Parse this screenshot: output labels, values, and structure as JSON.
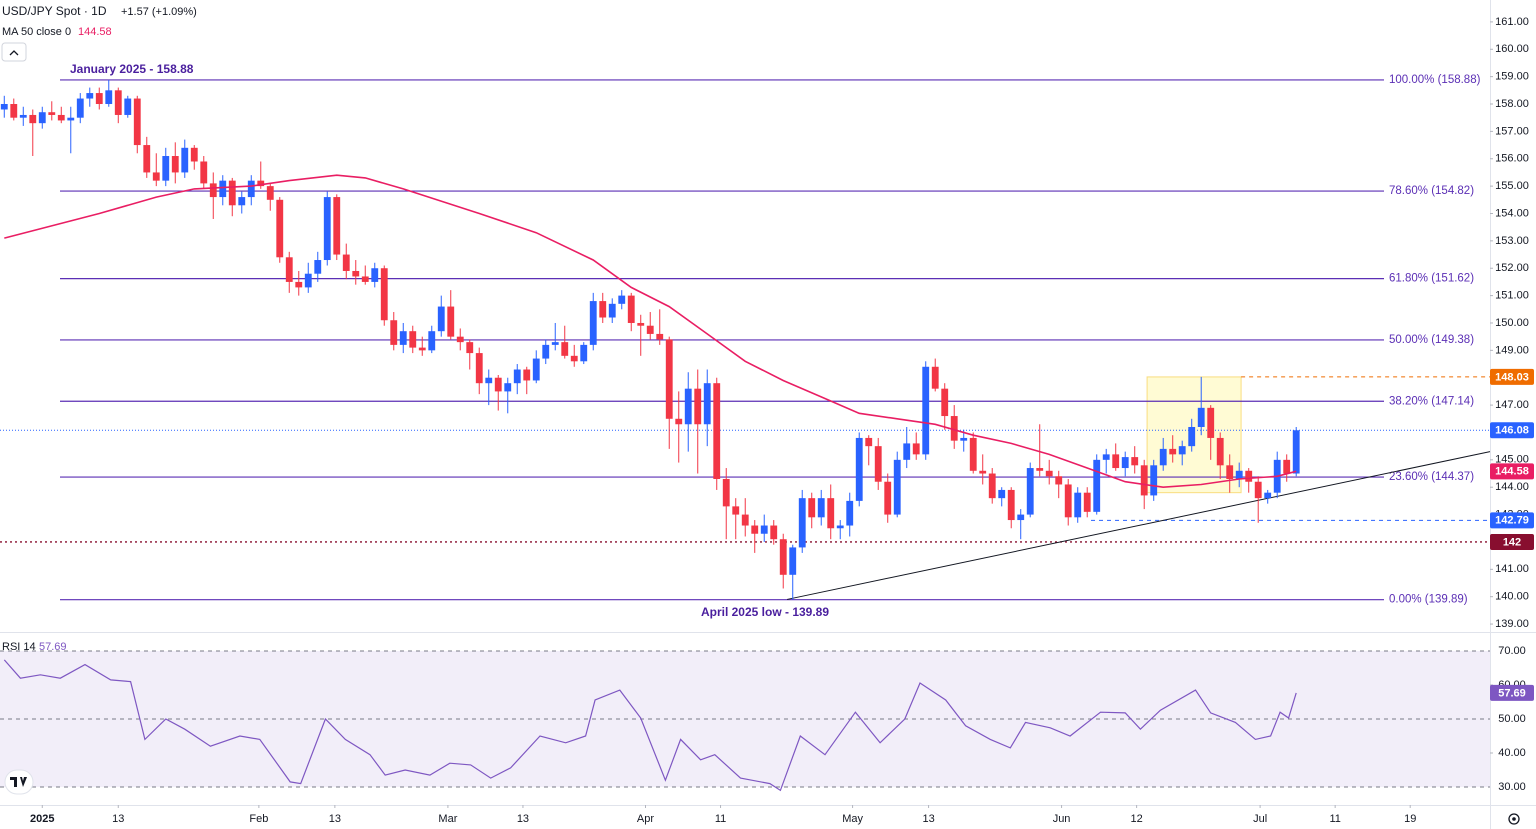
{
  "chart_data": {
    "type": "candlestick",
    "title": "USD/JPY Spot · 1D",
    "change": "+1.57 (+1.09%)",
    "ma_label": "MA 50 close 0",
    "rsi_label": "RSI 14",
    "up_color": "#2962ff",
    "down_color": "#f23645",
    "ma_color": "#e91e63",
    "rsi_color": "#7e57c2",
    "fib_color": "#5b2fb5",
    "xlim": [
      -0.45,
      156.4
    ],
    "ylim": [
      138.71,
      161.8
    ],
    "yticks": [
      {
        "value": 139,
        "label": "139.00"
      },
      {
        "value": 140,
        "label": "140.00"
      },
      {
        "value": 141,
        "label": "141.00"
      },
      {
        "value": 142,
        "label": "142.00"
      },
      {
        "value": 143,
        "label": "143.00"
      },
      {
        "value": 144,
        "label": "144.00"
      },
      {
        "value": 145,
        "label": "145.00"
      },
      {
        "value": 146,
        "label": "146.00"
      },
      {
        "value": 147,
        "label": "147.00"
      },
      {
        "value": 148,
        "label": "148.00"
      },
      {
        "value": 149,
        "label": "149.00"
      },
      {
        "value": 150,
        "label": "150.00"
      },
      {
        "value": 151,
        "label": "151.00"
      },
      {
        "value": 152,
        "label": "152.00"
      },
      {
        "value": 153,
        "label": "153.00"
      },
      {
        "value": 154,
        "label": "154.00"
      },
      {
        "value": 155,
        "label": "155.00"
      },
      {
        "value": 156,
        "label": "156.00"
      },
      {
        "value": 157,
        "label": "157.00"
      },
      {
        "value": 158,
        "label": "158.00"
      },
      {
        "value": 159,
        "label": "159.00"
      },
      {
        "value": 160,
        "label": "160.00"
      },
      {
        "value": 161,
        "label": "161.00"
      }
    ],
    "xticks": [
      {
        "value": 4,
        "label": "2025"
      },
      {
        "value": 12,
        "label": "13"
      },
      {
        "value": 26.8,
        "label": "Feb"
      },
      {
        "value": 34.8,
        "label": "13"
      },
      {
        "value": 46.7,
        "label": "Mar"
      },
      {
        "value": 54.6,
        "label": "13"
      },
      {
        "value": 67.5,
        "label": "Apr"
      },
      {
        "value": 75.4,
        "label": "11"
      },
      {
        "value": 89.3,
        "label": "May"
      },
      {
        "value": 97.3,
        "label": "13"
      },
      {
        "value": 111.3,
        "label": "Jun"
      },
      {
        "value": 119.2,
        "label": "12"
      },
      {
        "value": 132.2,
        "label": "Jul"
      },
      {
        "value": 140.1,
        "label": "11"
      },
      {
        "value": 148,
        "label": "19"
      }
    ],
    "candles": [
      [
        157.8,
        158.3,
        157.5,
        158.0
      ],
      [
        158.0,
        158.2,
        157.4,
        157.5
      ],
      [
        157.5,
        157.9,
        157.2,
        157.6
      ],
      [
        157.6,
        157.8,
        156.1,
        157.3
      ],
      [
        157.3,
        157.9,
        157.1,
        157.7
      ],
      [
        157.7,
        158.1,
        157.4,
        157.6
      ],
      [
        157.6,
        157.9,
        157.3,
        157.4
      ],
      [
        157.4,
        157.9,
        156.2,
        157.5
      ],
      [
        157.5,
        158.4,
        157.3,
        158.2
      ],
      [
        158.2,
        158.6,
        157.9,
        158.4
      ],
      [
        158.4,
        158.6,
        157.8,
        158.0
      ],
      [
        158.0,
        158.88,
        157.9,
        158.5
      ],
      [
        158.5,
        158.6,
        157.3,
        157.6
      ],
      [
        157.6,
        158.3,
        157.5,
        158.2
      ],
      [
        158.2,
        158.3,
        156.2,
        156.5
      ],
      [
        156.5,
        156.8,
        155.3,
        155.5
      ],
      [
        155.5,
        156.2,
        155.0,
        155.2
      ],
      [
        155.2,
        156.4,
        155.0,
        156.1
      ],
      [
        156.1,
        156.6,
        155.1,
        155.5
      ],
      [
        155.5,
        156.7,
        155.3,
        156.4
      ],
      [
        156.4,
        156.5,
        155.6,
        155.9
      ],
      [
        155.9,
        156.1,
        154.9,
        155.1
      ],
      [
        155.1,
        155.5,
        153.8,
        154.6
      ],
      [
        154.6,
        155.4,
        154.3,
        155.2
      ],
      [
        155.2,
        155.3,
        153.9,
        154.3
      ],
      [
        154.3,
        154.8,
        154.0,
        154.6
      ],
      [
        154.6,
        155.4,
        154.3,
        155.2
      ],
      [
        155.2,
        155.9,
        154.9,
        155.0
      ],
      [
        155.0,
        155.1,
        154.1,
        154.5
      ],
      [
        154.5,
        154.6,
        152.2,
        152.4
      ],
      [
        152.4,
        152.6,
        151.1,
        151.5
      ],
      [
        151.5,
        151.9,
        151.0,
        151.3
      ],
      [
        151.3,
        152.2,
        151.1,
        151.8
      ],
      [
        151.8,
        152.6,
        151.5,
        152.3
      ],
      [
        152.3,
        154.8,
        152.1,
        154.6
      ],
      [
        154.6,
        154.7,
        152.3,
        152.5
      ],
      [
        152.5,
        152.9,
        151.6,
        151.9
      ],
      [
        151.9,
        152.3,
        151.4,
        151.7
      ],
      [
        151.7,
        152.1,
        151.4,
        151.5
      ],
      [
        151.5,
        152.2,
        151.3,
        152.0
      ],
      [
        152.0,
        152.1,
        149.9,
        150.1
      ],
      [
        150.1,
        150.4,
        149.0,
        149.2
      ],
      [
        149.2,
        150.0,
        148.9,
        149.7
      ],
      [
        149.7,
        149.9,
        148.9,
        149.1
      ],
      [
        149.1,
        149.5,
        148.8,
        149.0
      ],
      [
        149.0,
        149.9,
        148.9,
        149.7
      ],
      [
        149.7,
        151.0,
        149.5,
        150.6
      ],
      [
        150.6,
        151.2,
        149.4,
        149.5
      ],
      [
        149.5,
        149.8,
        149.0,
        149.3
      ],
      [
        149.3,
        149.4,
        148.3,
        148.9
      ],
      [
        148.9,
        149.1,
        147.4,
        147.8
      ],
      [
        147.8,
        148.3,
        147.0,
        148.0
      ],
      [
        148.0,
        148.1,
        146.8,
        147.5
      ],
      [
        147.5,
        148.0,
        146.7,
        147.8
      ],
      [
        147.8,
        148.5,
        147.4,
        148.3
      ],
      [
        148.3,
        148.4,
        147.4,
        147.9
      ],
      [
        147.9,
        149.0,
        147.8,
        148.7
      ],
      [
        148.7,
        149.4,
        148.5,
        149.2
      ],
      [
        149.2,
        150.0,
        149.0,
        149.3
      ],
      [
        149.3,
        149.9,
        148.7,
        148.8
      ],
      [
        148.8,
        149.2,
        148.4,
        148.6
      ],
      [
        148.6,
        149.3,
        148.5,
        149.2
      ],
      [
        149.2,
        151.1,
        149.0,
        150.8
      ],
      [
        150.8,
        151.1,
        150.0,
        150.2
      ],
      [
        150.2,
        150.9,
        150.0,
        150.7
      ],
      [
        150.7,
        151.2,
        150.5,
        151.0
      ],
      [
        151.0,
        151.1,
        149.7,
        150.0
      ],
      [
        150.0,
        150.3,
        148.8,
        149.9
      ],
      [
        149.9,
        150.4,
        149.4,
        149.6
      ],
      [
        149.6,
        150.5,
        149.2,
        149.4
      ],
      [
        149.4,
        149.5,
        145.4,
        146.5
      ],
      [
        146.5,
        147.5,
        144.9,
        146.3
      ],
      [
        146.3,
        148.2,
        145.3,
        147.6
      ],
      [
        147.6,
        148.3,
        144.5,
        146.3
      ],
      [
        146.3,
        148.3,
        145.5,
        147.8
      ],
      [
        147.8,
        148.0,
        143.9,
        144.3
      ],
      [
        144.3,
        144.7,
        142.1,
        143.3
      ],
      [
        143.3,
        143.6,
        142.1,
        143.0
      ],
      [
        143.0,
        143.6,
        142.2,
        142.6
      ],
      [
        142.6,
        142.8,
        141.6,
        142.3
      ],
      [
        142.3,
        143.0,
        142.0,
        142.6
      ],
      [
        142.6,
        142.8,
        141.9,
        142.1
      ],
      [
        142.1,
        142.3,
        140.3,
        140.8
      ],
      [
        140.8,
        141.9,
        139.89,
        141.8
      ],
      [
        141.8,
        143.9,
        141.6,
        143.6
      ],
      [
        143.6,
        143.8,
        142.5,
        142.9
      ],
      [
        142.9,
        143.9,
        142.6,
        143.6
      ],
      [
        143.6,
        144.1,
        142.1,
        142.5
      ],
      [
        142.5,
        142.8,
        142.1,
        142.6
      ],
      [
        142.6,
        143.8,
        142.2,
        143.5
      ],
      [
        143.5,
        146.0,
        143.3,
        145.8
      ],
      [
        145.8,
        145.9,
        144.8,
        145.5
      ],
      [
        145.5,
        145.8,
        143.9,
        144.2
      ],
      [
        144.2,
        144.5,
        142.7,
        143.0
      ],
      [
        143.0,
        145.3,
        142.9,
        145.0
      ],
      [
        145.0,
        146.2,
        144.7,
        145.6
      ],
      [
        145.6,
        146.0,
        145.0,
        145.2
      ],
      [
        145.2,
        148.6,
        145.0,
        148.4
      ],
      [
        148.4,
        148.7,
        147.5,
        147.6
      ],
      [
        147.6,
        147.8,
        146.1,
        146.6
      ],
      [
        146.6,
        147.0,
        145.4,
        145.7
      ],
      [
        145.7,
        146.1,
        145.3,
        145.8
      ],
      [
        145.8,
        146.0,
        144.5,
        144.6
      ],
      [
        144.6,
        145.2,
        144.1,
        144.5
      ],
      [
        144.5,
        144.7,
        143.4,
        143.6
      ],
      [
        143.6,
        144.0,
        143.3,
        143.9
      ],
      [
        143.9,
        144.0,
        142.5,
        142.8
      ],
      [
        142.8,
        143.2,
        142.1,
        143.0
      ],
      [
        143.0,
        144.9,
        142.9,
        144.7
      ],
      [
        144.7,
        146.3,
        144.4,
        144.6
      ],
      [
        144.6,
        145.0,
        144.1,
        144.4
      ],
      [
        144.4,
        144.6,
        143.6,
        144.1
      ],
      [
        144.1,
        144.3,
        142.6,
        142.9
      ],
      [
        142.9,
        144.0,
        142.7,
        143.8
      ],
      [
        143.8,
        144.0,
        142.9,
        143.1
      ],
      [
        143.1,
        145.2,
        143.0,
        145.0
      ],
      [
        145.0,
        145.4,
        144.5,
        145.2
      ],
      [
        145.2,
        145.6,
        144.6,
        144.7
      ],
      [
        144.7,
        145.3,
        144.4,
        145.1
      ],
      [
        145.1,
        145.5,
        144.5,
        144.8
      ],
      [
        144.8,
        145.0,
        143.2,
        143.7
      ],
      [
        143.7,
        145.0,
        143.5,
        144.8
      ],
      [
        144.8,
        145.8,
        144.6,
        145.4
      ],
      [
        145.4,
        145.9,
        144.9,
        145.2
      ],
      [
        145.2,
        145.7,
        144.8,
        145.5
      ],
      [
        145.5,
        146.5,
        145.3,
        146.2
      ],
      [
        146.2,
        148.03,
        145.9,
        146.9
      ],
      [
        146.9,
        147.0,
        145.0,
        145.8
      ],
      [
        145.8,
        146.0,
        144.3,
        144.8
      ],
      [
        144.8,
        145.2,
        143.8,
        144.3
      ],
      [
        144.3,
        144.9,
        144.0,
        144.6
      ],
      [
        144.6,
        144.7,
        143.8,
        144.2
      ],
      [
        144.2,
        144.4,
        142.7,
        143.6
      ],
      [
        143.6,
        143.9,
        143.4,
        143.8
      ],
      [
        143.8,
        145.3,
        143.6,
        145.0
      ],
      [
        145.0,
        145.2,
        144.2,
        144.5
      ],
      [
        144.5,
        146.2,
        144.4,
        146.08
      ]
    ],
    "ma": {
      "x": [
        0,
        10,
        16,
        20,
        26,
        30,
        35,
        38,
        42,
        50,
        56,
        62,
        66,
        70,
        74,
        78,
        82,
        86,
        90,
        94,
        98,
        102,
        106,
        110,
        114,
        118,
        122,
        126,
        130,
        134,
        136
      ],
      "values": [
        153.1,
        154.0,
        154.6,
        154.9,
        155.0,
        155.2,
        155.4,
        155.3,
        154.9,
        154.0,
        153.3,
        152.3,
        151.3,
        150.6,
        149.6,
        148.6,
        147.9,
        147.3,
        146.7,
        146.5,
        146.3,
        145.9,
        145.6,
        145.2,
        144.7,
        144.2,
        144.0,
        144.1,
        144.3,
        144.4,
        144.58
      ]
    },
    "fib_levels": [
      {
        "value": 158.88,
        "label": "100.00% (158.88)"
      },
      {
        "value": 154.82,
        "label": "78.60% (154.82)"
      },
      {
        "value": 151.62,
        "label": "61.80% (151.62)"
      },
      {
        "value": 149.38,
        "label": "50.00% (149.38)"
      },
      {
        "value": 147.14,
        "label": "38.20% (147.14)"
      },
      {
        "value": 144.37,
        "label": "23.60% (144.37)"
      },
      {
        "value": 139.89,
        "label": "0.00% (139.89)"
      }
    ],
    "levels": [
      {
        "value": 148.03,
        "color": "#ef6c00",
        "from": 130.2
      },
      {
        "value": 142.79,
        "color": "#2962ff",
        "from": 114.4
      },
      {
        "value": 142.0,
        "color": "#880e2f",
        "from": -0.45
      }
    ],
    "highlight": {
      "x": [
        120.3,
        130.2
      ],
      "values": [
        148.03,
        143.8
      ]
    },
    "trendline": {
      "x": [
        82.4,
        156.4
      ],
      "values": [
        139.9,
        145.3
      ]
    },
    "annotations": [
      {
        "text": "January 2025 - 158.88"
      },
      {
        "text": "April 2025 low - 139.89"
      }
    ],
    "rsi": {
      "ylim": [
        24.7,
        75.3
      ],
      "yticks": [
        {
          "value": 30,
          "label": "30.00"
        },
        {
          "value": 40,
          "label": "40.00"
        },
        {
          "value": 50,
          "label": "50.00"
        },
        {
          "value": 60,
          "label": "60.00"
        },
        {
          "value": 70,
          "label": "70.00"
        }
      ],
      "band": [
        30,
        70
      ],
      "x": [
        0,
        1.7,
        3.8,
        5.9,
        8.5,
        11.2,
        13.3,
        14.8,
        17,
        19,
        21.7,
        24.8,
        26.9,
        30.1,
        31.2,
        33.8,
        35.9,
        38.5,
        40.1,
        42.2,
        44.8,
        46.9,
        49.1,
        51.2,
        53.3,
        56.4,
        59.1,
        61.2,
        62.2,
        64.8,
        67,
        69.6,
        71.2,
        73.3,
        74.8,
        77.5,
        80.6,
        81.7,
        83.8,
        86.4,
        89.6,
        92.2,
        94.8,
        96.4,
        99.1,
        101.2,
        103.8,
        105.9,
        107.5,
        110.1,
        112.2,
        115.4,
        118,
        119.6,
        121.7,
        125.4,
        127,
        129.6,
        131.7,
        133.3,
        134.3,
        135.2,
        136
      ],
      "values": [
        67.4,
        62,
        63,
        62,
        66,
        61.5,
        61,
        44,
        50,
        47,
        42,
        45,
        44,
        31.5,
        31,
        50,
        44,
        39.5,
        33.5,
        35,
        33.5,
        37,
        36.5,
        32.6,
        35.6,
        45,
        43,
        45,
        55.6,
        58.5,
        50.3,
        32,
        44,
        38,
        39.5,
        32.6,
        31,
        29,
        45,
        39.5,
        52,
        43,
        50,
        60.6,
        55.6,
        48,
        44,
        41.5,
        49,
        47.4,
        45,
        52,
        51.8,
        47,
        52.6,
        58.5,
        51.8,
        49,
        44,
        45,
        52,
        50.3,
        57.69
      ]
    }
  }
}
